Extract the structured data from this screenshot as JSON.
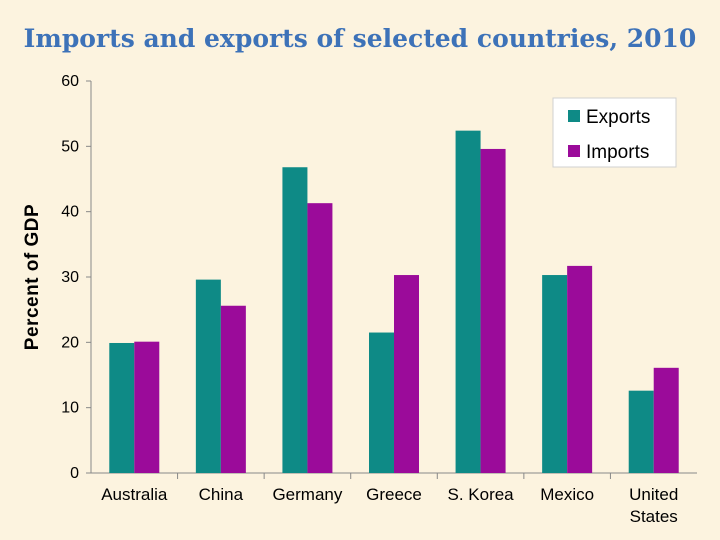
{
  "chart_data": {
    "type": "bar",
    "title": "Imports and exports of selected countries, 2010",
    "xlabel": "",
    "ylabel": "Percent of GDP",
    "ylim": [
      0,
      60
    ],
    "yticks": [
      "0",
      "10",
      "20",
      "30",
      "40",
      "50",
      "60"
    ],
    "categories": [
      "Australia",
      "China",
      "Germany",
      "Greece",
      "S. Korea",
      "Mexico",
      "United States"
    ],
    "category_lines": [
      [
        "Australia"
      ],
      [
        "China"
      ],
      [
        "Germany"
      ],
      [
        "Greece"
      ],
      [
        "S. Korea"
      ],
      [
        "Mexico"
      ],
      [
        "United",
        "States"
      ]
    ],
    "series": [
      {
        "name": "Exports",
        "color": "#0e8a86",
        "values": [
          19.9,
          29.6,
          46.8,
          21.5,
          52.4,
          30.3,
          12.6
        ]
      },
      {
        "name": "Imports",
        "color": "#9b0b9a",
        "values": [
          20.1,
          25.6,
          41.3,
          30.3,
          49.6,
          31.7,
          16.1
        ]
      }
    ],
    "grid": false,
    "legend": "top-right"
  }
}
